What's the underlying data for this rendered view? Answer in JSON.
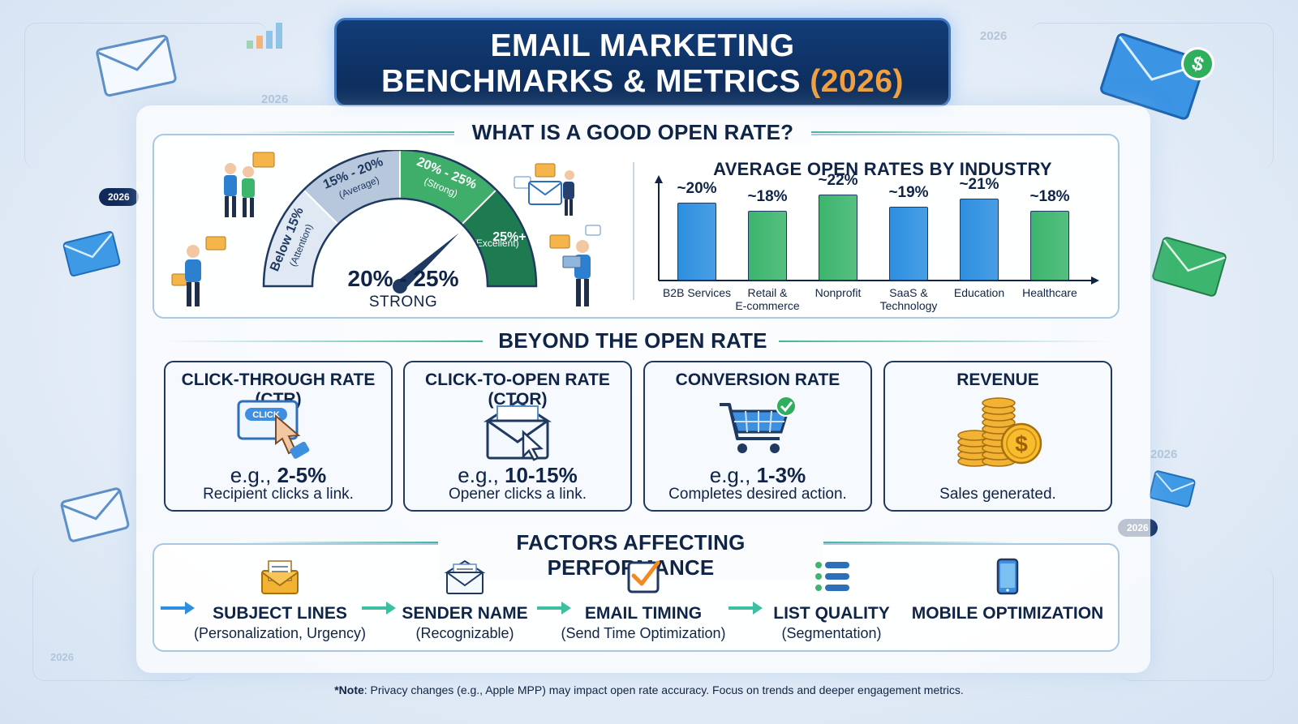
{
  "title": {
    "line1": "EMAIL MARKETING",
    "line2_prefix": "BENCHMARKS & METRICS",
    "line2_year": "(2026)"
  },
  "background": {
    "year_labels": [
      "2026",
      "2026",
      "2026",
      "2026",
      "2026",
      "2026"
    ]
  },
  "open_rate": {
    "heading": "WHAT IS A GOOD OPEN RATE?",
    "gauge": {
      "segments": [
        {
          "range": "Below 15%",
          "note": "(Attention)",
          "color": "#dfe8f3"
        },
        {
          "range": "15% - 20%",
          "note": "(Average)",
          "color": "#b8c8dc"
        },
        {
          "range": "20% - 25%",
          "note": "(Strong)",
          "color": "#3fae6a"
        },
        {
          "range": "25%+",
          "note": "(Excellent)",
          "color": "#1e7a50"
        }
      ],
      "current_value": "20% - 25%",
      "current_label": "STRONG",
      "needle_percent": 23
    }
  },
  "chart_data": {
    "type": "bar",
    "title": "AVERAGE OPEN RATES BY INDUSTRY",
    "categories": [
      "B2B Services",
      "Retail & E-commerce",
      "Nonprofit",
      "SaaS & Technology",
      "Education",
      "Healthcare"
    ],
    "category_lines": [
      [
        "B2B Services"
      ],
      [
        "Retail &",
        "E-commerce"
      ],
      [
        "Nonprofit"
      ],
      [
        "SaaS &",
        "Technology"
      ],
      [
        "Education"
      ],
      [
        "Healthcare"
      ]
    ],
    "values": [
      20,
      18,
      22,
      19,
      21,
      18
    ],
    "data_labels": [
      "~20%",
      "~18%",
      "~22%",
      "~19%",
      "~21%",
      "~18%"
    ],
    "bar_colors": [
      "#2d8fe0",
      "#3cb56e",
      "#3cb56e",
      "#2d8fe0",
      "#2d8fe0",
      "#3cb56e"
    ],
    "ylim": [
      0,
      25
    ],
    "xlabel": "",
    "ylabel": "",
    "grid": false
  },
  "beyond": {
    "heading": "BEYOND THE OPEN RATE",
    "cards": [
      {
        "title": "CLICK-THROUGH RATE (CTR)",
        "example_prefix": "e.g.,",
        "example_value": "2-5%",
        "desc": "Recipient clicks a link.",
        "icon": "click-icon",
        "icon_text": "CLICK"
      },
      {
        "title": "CLICK-TO-OPEN RATE (CTOR)",
        "example_prefix": "e.g.,",
        "example_value": "10-15%",
        "desc": "Opener clicks a link.",
        "icon": "open-envelope-cursor-icon"
      },
      {
        "title": "CONVERSION RATE",
        "example_prefix": "e.g.,",
        "example_value": "1-3%",
        "desc": "Completes desired action.",
        "icon": "cart-check-icon"
      },
      {
        "title": "REVENUE",
        "example_prefix": "",
        "example_value": "",
        "desc": "Sales generated.",
        "icon": "coins-icon",
        "icon_text": "$"
      }
    ]
  },
  "factors": {
    "heading": "FACTORS AFFECTING PERFORMANCE",
    "items": [
      {
        "name": "SUBJECT LINES",
        "sub": "(Personalization, Urgency)",
        "icon": "envelope-letter-icon"
      },
      {
        "name": "SENDER NAME",
        "sub": "(Recognizable)",
        "icon": "envelope-icon"
      },
      {
        "name": "EMAIL TIMING",
        "sub": "(Send Time Optimization)",
        "icon": "checkbox-icon"
      },
      {
        "name": "LIST QUALITY",
        "sub": "(Segmentation)",
        "icon": "list-icon"
      },
      {
        "name": "MOBILE OPTIMIZATION",
        "sub": "",
        "icon": "phone-icon"
      }
    ]
  },
  "note": {
    "bold": "*Note",
    "text": ": Privacy changes (e.g., Apple MPP) may impact open rate accuracy. Focus on trends and deeper engagement metrics."
  },
  "colors": {
    "navy": "#0f2447",
    "blue": "#2d8fe0",
    "green": "#3cb56e",
    "accent_orange": "#f0a040"
  }
}
